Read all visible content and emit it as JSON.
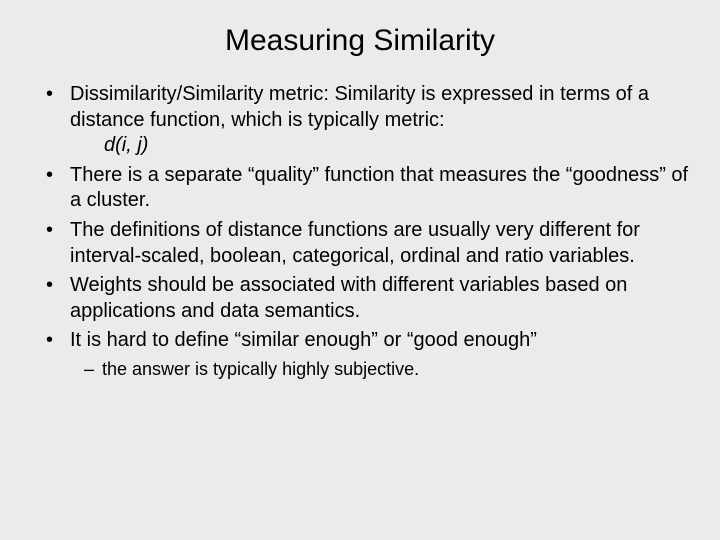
{
  "background_color": "#ebebeb",
  "text_color": "#000000",
  "title": {
    "text": "Measuring Similarity",
    "fontsize": 30,
    "align": "center"
  },
  "bullets": [
    {
      "text": "Dissimilarity/Similarity metric: Similarity is expressed in terms of a distance function, which is typically metric:",
      "formula": "d(i, j)"
    },
    {
      "text": "There is a separate “quality” function that measures the “goodness” of a cluster."
    },
    {
      "text": "The definitions of distance functions are usually very different for interval-scaled, boolean, categorical, ordinal and ratio variables."
    },
    {
      "text": "Weights should be associated with different variables based on applications and data semantics."
    },
    {
      "text": "It is hard to define “similar enough” or “good enough”",
      "sub": [
        "the answer is typically highly subjective."
      ]
    }
  ],
  "body_fontsize": 20,
  "sub_fontsize": 18,
  "font_family": "Verdana"
}
